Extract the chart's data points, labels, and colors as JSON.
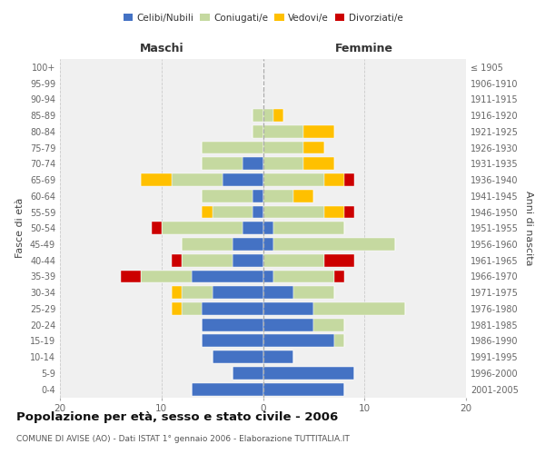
{
  "age_groups": [
    "0-4",
    "5-9",
    "10-14",
    "15-19",
    "20-24",
    "25-29",
    "30-34",
    "35-39",
    "40-44",
    "45-49",
    "50-54",
    "55-59",
    "60-64",
    "65-69",
    "70-74",
    "75-79",
    "80-84",
    "85-89",
    "90-94",
    "95-99",
    "100+"
  ],
  "birth_years": [
    "2001-2005",
    "1996-2000",
    "1991-1995",
    "1986-1990",
    "1981-1985",
    "1976-1980",
    "1971-1975",
    "1966-1970",
    "1961-1965",
    "1956-1960",
    "1951-1955",
    "1946-1950",
    "1941-1945",
    "1936-1940",
    "1931-1935",
    "1926-1930",
    "1921-1925",
    "1916-1920",
    "1911-1915",
    "1906-1910",
    "≤ 1905"
  ],
  "males": {
    "celibi": [
      7,
      3,
      5,
      6,
      6,
      6,
      5,
      7,
      3,
      3,
      2,
      1,
      1,
      4,
      2,
      0,
      0,
      0,
      0,
      0,
      0
    ],
    "coniugati": [
      0,
      0,
      0,
      0,
      0,
      2,
      3,
      5,
      5,
      5,
      8,
      4,
      5,
      5,
      4,
      6,
      1,
      1,
      0,
      0,
      0
    ],
    "vedovi": [
      0,
      0,
      0,
      0,
      0,
      1,
      1,
      0,
      0,
      0,
      0,
      1,
      0,
      3,
      0,
      0,
      0,
      0,
      0,
      0,
      0
    ],
    "divorziati": [
      0,
      0,
      0,
      0,
      0,
      0,
      0,
      2,
      1,
      0,
      1,
      0,
      0,
      0,
      0,
      0,
      0,
      0,
      0,
      0,
      0
    ]
  },
  "females": {
    "nubili": [
      8,
      9,
      3,
      7,
      5,
      5,
      3,
      1,
      0,
      1,
      1,
      0,
      0,
      0,
      0,
      0,
      0,
      0,
      0,
      0,
      0
    ],
    "coniugate": [
      0,
      0,
      0,
      1,
      3,
      9,
      4,
      6,
      6,
      12,
      7,
      6,
      3,
      6,
      4,
      4,
      4,
      1,
      0,
      0,
      0
    ],
    "vedove": [
      0,
      0,
      0,
      0,
      0,
      0,
      0,
      0,
      0,
      0,
      0,
      2,
      2,
      2,
      3,
      2,
      3,
      1,
      0,
      0,
      0
    ],
    "divorziate": [
      0,
      0,
      0,
      0,
      0,
      0,
      0,
      1,
      3,
      0,
      0,
      1,
      0,
      1,
      0,
      0,
      0,
      0,
      0,
      0,
      0
    ]
  },
  "colors": {
    "celibi": "#4472c4",
    "coniugati": "#c5d9a0",
    "vedovi": "#ffc000",
    "divorziati": "#cc0000"
  },
  "xlim": 20,
  "title": "Popolazione per età, sesso e stato civile - 2006",
  "subtitle": "COMUNE DI AVISE (AO) - Dati ISTAT 1° gennaio 2006 - Elaborazione TUTTITALIA.IT",
  "ylabel_left": "Fasce di età",
  "ylabel_right": "Anni di nascita",
  "xlabel_left": "Maschi",
  "xlabel_right": "Femmine",
  "bg_color": "#f0f0f0"
}
